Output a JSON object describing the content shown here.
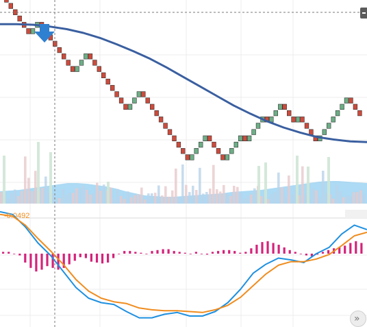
{
  "chart_data": {
    "type": "renko",
    "main_panel": {
      "series": [
        {
          "kind": "renko",
          "brick_size": 1,
          "start": 51,
          "sequence": [
            "D",
            "D",
            "D",
            "D",
            "D",
            "D",
            "D",
            "U",
            "U",
            "D",
            "D",
            "D",
            "D",
            "D",
            "D",
            "D",
            "D",
            "U",
            "U",
            "U",
            "D",
            "D",
            "D",
            "D",
            "D",
            "D",
            "D",
            "D",
            "D",
            "U",
            "U",
            "U",
            "D",
            "D",
            "D",
            "D",
            "D",
            "D",
            "D",
            "D",
            "D",
            "D",
            "D",
            "U",
            "U",
            "U",
            "U",
            "D",
            "D",
            "D",
            "D",
            "U",
            "U",
            "U",
            "U",
            "D",
            "U",
            "U",
            "U",
            "U",
            "D",
            "U",
            "U",
            "U",
            "D",
            "D",
            "D",
            "U",
            "D",
            "D",
            "D",
            "D",
            "U",
            "U",
            "U",
            "U",
            "U",
            "U",
            "U",
            "D",
            "D",
            "D"
          ],
          "colors": {
            "up": "#6dae86",
            "down": "#cc4b3c",
            "outline": "#333333"
          }
        },
        {
          "kind": "line",
          "role": "moving average",
          "color": "#3a5fa0",
          "values": [
            45.7,
            45.7,
            45.6,
            45.3,
            44.9,
            44.3,
            43.5,
            42.5,
            41.4,
            40.2,
            38.8,
            37.3,
            35.8,
            34.3,
            32.8,
            31.5,
            30.3,
            29.3,
            28.5,
            27.8,
            27.4,
            27.1,
            27.0
          ]
        }
      ],
      "volume": {
        "area_color": "#9fd3f2",
        "bar_color_up": "#b9d3ea",
        "bar_color_down": "#e7c9cc"
      },
      "marker": {
        "type": "down-arrow",
        "color": "#2f80d0"
      },
      "crosshair": {
        "color": "#777777"
      }
    },
    "macd_panel": {
      "value_label": "-0.0492",
      "label_color": "#f08c1e",
      "macd_line": {
        "color": "#1e90e0",
        "values": [
          0.47,
          0.44,
          0.3,
          0.12,
          -0.02,
          -0.2,
          -0.38,
          -0.5,
          -0.55,
          -0.57,
          -0.65,
          -0.72,
          -0.72,
          -0.68,
          -0.66,
          -0.7,
          -0.7,
          -0.65,
          -0.55,
          -0.4,
          -0.22,
          -0.12,
          -0.05,
          -0.07,
          -0.1,
          0.0,
          0.07,
          0.22,
          0.32,
          0.27
        ]
      },
      "signal_line": {
        "color": "#f08c1e",
        "values": [
          0.44,
          0.42,
          0.32,
          0.17,
          0.03,
          -0.12,
          -0.29,
          -0.42,
          -0.5,
          -0.54,
          -0.56,
          -0.61,
          -0.63,
          -0.64,
          -0.64,
          -0.65,
          -0.66,
          -0.63,
          -0.58,
          -0.49,
          -0.36,
          -0.23,
          -0.13,
          -0.09,
          -0.09,
          -0.06,
          -0.01,
          0.09,
          0.2,
          0.24
        ]
      },
      "histogram": {
        "color": "#d4237a",
        "values": [
          0.02,
          0.02,
          0.0,
          -0.02,
          -0.1,
          -0.16,
          -0.2,
          -0.18,
          -0.14,
          -0.16,
          -0.18,
          -0.16,
          -0.12,
          -0.08,
          -0.04,
          -0.05,
          -0.09,
          -0.1,
          -0.11,
          -0.1,
          -0.05,
          0.0,
          0.03,
          0.03,
          0.02,
          0.01,
          0.0,
          0.03,
          0.04,
          0.05,
          0.05,
          0.03,
          0.02,
          0.01,
          0.0,
          0.02,
          0.0,
          -0.01,
          0.02,
          0.03,
          0.04,
          0.04,
          0.03,
          0.01,
          0.02,
          0.06,
          0.1,
          0.13,
          0.14,
          0.12,
          0.1,
          0.07,
          0.04,
          0.02,
          0.0,
          -0.02,
          -0.03,
          -0.01,
          0.02,
          0.04,
          0.06,
          0.07,
          0.09,
          0.12,
          0.14,
          0.12
        ]
      }
    },
    "grid": true
  }
}
